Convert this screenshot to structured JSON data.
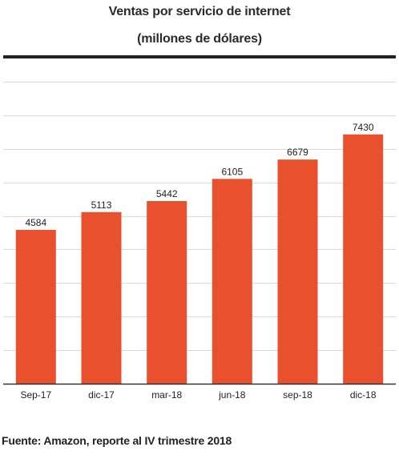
{
  "chart_data": {
    "type": "bar",
    "title": "Ventas por servicio de internet",
    "subtitle": "(millones de dólares)",
    "categories": [
      "Sep-17",
      "dic-17",
      "mar-18",
      "jun-18",
      "sep-18",
      "dic-18"
    ],
    "values": [
      4584,
      5113,
      5442,
      6105,
      6679,
      7430
    ],
    "xlabel": "",
    "ylabel": "",
    "ylim": [
      0,
      9000
    ],
    "grid": true,
    "y_axis_labels_shown": false,
    "data_labels": true,
    "bar_color": "#e8502e"
  },
  "source": "Fuente: Amazon, reporte al IV trimestre 2018",
  "colors": {
    "bar": "#e8502e",
    "grid": "#d9d9d9",
    "axis": "#333333",
    "text": "#222222"
  }
}
